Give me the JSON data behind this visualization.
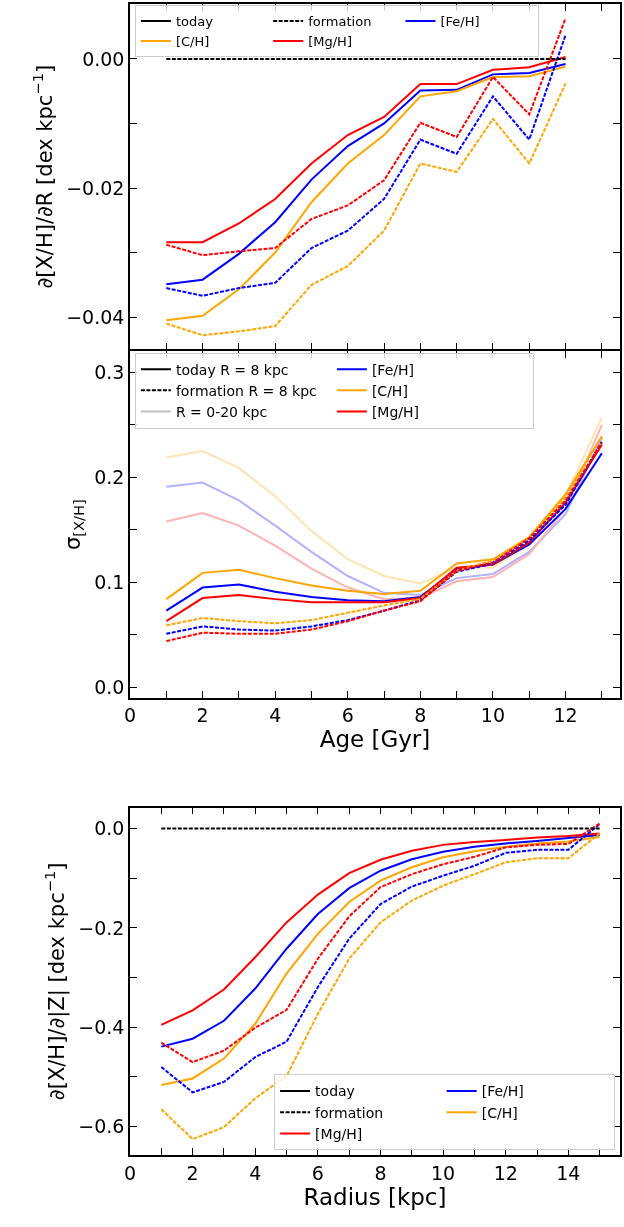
{
  "chart_data": [
    {
      "type": "line",
      "ylabel": "∂[X/H]/∂R [dex kpc$^{−1}$]",
      "legend": "top left",
      "tick_labels": "y",
      "x": [
        1,
        2,
        3,
        4,
        5,
        6,
        7,
        8,
        9,
        10,
        11,
        12
      ],
      "xlim": [
        0,
        13.5
      ],
      "xticks": [
        0,
        {
          "value": 1,
          "label": null
        },
        2,
        {
          "value": 3,
          "label": null
        },
        4,
        {
          "value": 5,
          "label": null
        },
        6,
        {
          "value": 7,
          "label": null
        },
        8,
        {
          "value": 9,
          "label": null
        },
        10,
        {
          "value": 11,
          "label": null
        },
        12,
        {
          "value": 13,
          "label": null
        }
      ],
      "ylim": [
        -0.045,
        0.0085
      ],
      "yticks": [
        {
          "value": -0.04,
          "label": "−0.04"
        },
        {
          "value": -0.03,
          "label": null
        },
        {
          "value": -0.02,
          "label": "−0.02"
        },
        {
          "value": -0.01,
          "label": null
        },
        {
          "value": 0,
          "label": "0.00"
        }
      ],
      "series": [
        {
          "name": "today",
          "color": "#000000",
          "line_style": "solid",
          "values": [
            null,
            null,
            null,
            null,
            null,
            null,
            null,
            null,
            null,
            null,
            null,
            null
          ]
        },
        {
          "name": "formation",
          "color": "#000000",
          "line_style": "dashed",
          "values": [
            null,
            null,
            null,
            null,
            null,
            null,
            null,
            null,
            null,
            null,
            null,
            null
          ]
        },
        {
          "name": "[Fe/H]",
          "color": "#0000ff",
          "line_style": "solid",
          "values": [
            -0.0349,
            -0.0342,
            -0.0302,
            -0.0253,
            -0.0187,
            -0.0135,
            -0.01,
            -0.0049,
            -0.0048,
            -0.0024,
            -0.0022,
            -0.0008
          ]
        },
        {
          "name": "[C/H]",
          "color": "#ffa500",
          "line_style": "solid",
          "values": [
            -0.0405,
            -0.0398,
            -0.0357,
            -0.03,
            -0.0222,
            -0.0162,
            -0.0118,
            -0.0058,
            -0.005,
            -0.0028,
            -0.0027,
            -0.0012
          ]
        },
        {
          "name": "[Mg/H]",
          "color": "#ff0000",
          "line_style": "solid",
          "values": [
            -0.0284,
            -0.0284,
            -0.0255,
            -0.0217,
            -0.0162,
            -0.0118,
            -0.009,
            -0.0039,
            -0.0039,
            -0.0017,
            -0.0013,
            0.0003
          ]
        },
        {
          "color": "#0000ff",
          "line_style": "dashed",
          "values": [
            -0.0355,
            -0.0367,
            -0.0355,
            -0.0347,
            -0.0293,
            -0.0266,
            -0.0217,
            -0.0125,
            -0.0147,
            -0.0058,
            -0.0125,
            0.0037
          ]
        },
        {
          "color": "#ffa500",
          "line_style": "dashed",
          "values": [
            -0.041,
            -0.0428,
            -0.0422,
            -0.0414,
            -0.035,
            -0.0321,
            -0.0266,
            -0.0162,
            -0.0175,
            -0.0093,
            -0.0162,
            -0.0038
          ]
        },
        {
          "color": "#ff0000",
          "line_style": "dashed",
          "values": [
            -0.0288,
            -0.0304,
            -0.0298,
            -0.0293,
            -0.0248,
            -0.0227,
            -0.0188,
            -0.0099,
            -0.0121,
            -0.0028,
            -0.0086,
            0.0063
          ]
        },
        {
          "color": "#000000",
          "line_style": "dashed",
          "values": [
            0,
            0,
            0,
            0,
            0,
            0,
            0,
            0,
            0,
            0,
            0,
            0
          ]
        }
      ]
    },
    {
      "type": "line",
      "xlabel": "Age [Gyr]",
      "ylabel": "σ$_{[X/H]}$",
      "legend": "top left",
      "x": [
        1,
        2,
        3,
        4,
        5,
        6,
        7,
        8,
        9,
        10,
        11,
        12,
        13
      ],
      "xlim": [
        0,
        13.5
      ],
      "xticks": [
        0,
        {
          "value": 1,
          "label": null
        },
        2,
        {
          "value": 3,
          "label": null
        },
        4,
        {
          "value": 5,
          "label": null
        },
        6,
        {
          "value": 7,
          "label": null
        },
        8,
        {
          "value": 9,
          "label": null
        },
        10,
        {
          "value": 11,
          "label": null
        },
        12,
        {
          "value": 13,
          "label": null
        }
      ],
      "ylim": [
        -0.01,
        0.32
      ],
      "yticks": [
        {
          "value": 0,
          "label": "0.0"
        },
        {
          "value": 0.05,
          "label": null
        },
        {
          "value": 0.1,
          "label": "0.1"
        },
        {
          "value": 0.15,
          "label": null
        },
        {
          "value": 0.2,
          "label": "0.2"
        },
        {
          "value": 0.25,
          "label": null
        },
        {
          "value": 0.3,
          "label": "0.3"
        }
      ],
      "series": [
        {
          "color": "#b2b2ff",
          "line_style": "solid",
          "values": [
            0.191,
            0.195,
            0.178,
            0.154,
            0.129,
            0.106,
            0.09,
            0.088,
            0.104,
            0.108,
            0.129,
            0.165,
            0.238
          ]
        },
        {
          "color": "#ffe4b2",
          "line_style": "solid",
          "values": [
            0.219,
            0.225,
            0.209,
            0.182,
            0.149,
            0.122,
            0.106,
            0.099,
            0.114,
            0.114,
            0.136,
            0.182,
            0.257
          ]
        },
        {
          "color": "#ffb2b2",
          "line_style": "solid",
          "values": [
            0.158,
            0.166,
            0.154,
            0.135,
            0.113,
            0.095,
            0.084,
            0.085,
            0.101,
            0.105,
            0.127,
            0.17,
            0.25
          ]
        },
        {
          "name": "today R = 8 kpc",
          "color": "#000000",
          "line_style": "solid",
          "values": [
            null,
            null,
            null,
            null,
            null,
            null,
            null,
            null,
            null,
            null,
            null,
            null,
            null
          ]
        },
        {
          "name": "[Fe/H]",
          "color": "#0000ff",
          "line_style": "solid",
          "values": [
            0.073,
            0.095,
            0.098,
            0.091,
            0.086,
            0.083,
            0.082,
            0.086,
            0.113,
            0.117,
            0.136,
            0.17,
            0.223
          ]
        },
        {
          "name": "formation R = 8 kpc",
          "color": "#000000",
          "line_style": "dashed",
          "values": [
            null,
            null,
            null,
            null,
            null,
            null,
            null,
            null,
            null,
            null,
            null,
            null,
            null
          ]
        },
        {
          "name": "[C/H]",
          "color": "#ffa500",
          "line_style": "solid",
          "values": [
            0.084,
            0.109,
            0.112,
            0.104,
            0.097,
            0.092,
            0.089,
            0.092,
            0.118,
            0.122,
            0.143,
            0.184,
            0.239
          ]
        },
        {
          "name": "R = 0-20 kpc",
          "color": "#c0c0c0",
          "line_style": "solid",
          "values": [
            null,
            null,
            null,
            null,
            null,
            null,
            null,
            null,
            null,
            null,
            null,
            null,
            null
          ]
        },
        {
          "name": "[Mg/H]",
          "color": "#ff0000",
          "line_style": "solid",
          "values": [
            0.063,
            0.085,
            0.088,
            0.084,
            0.081,
            0.081,
            0.081,
            0.085,
            0.114,
            0.117,
            0.138,
            0.176,
            0.231
          ]
        },
        {
          "color": "#0000ff",
          "line_style": "dashed",
          "values": [
            0.051,
            0.058,
            0.055,
            0.054,
            0.058,
            0.064,
            0.073,
            0.083,
            0.11,
            0.118,
            0.14,
            0.174,
            0.234
          ]
        },
        {
          "color": "#ffa500",
          "line_style": "dashed",
          "values": [
            0.059,
            0.066,
            0.063,
            0.061,
            0.064,
            0.071,
            0.078,
            0.084,
            0.111,
            0.121,
            0.143,
            0.181,
            0.239
          ]
        },
        {
          "color": "#ff0000",
          "line_style": "dashed",
          "values": [
            0.044,
            0.052,
            0.051,
            0.051,
            0.055,
            0.063,
            0.073,
            0.082,
            0.111,
            0.119,
            0.142,
            0.178,
            0.233
          ]
        }
      ]
    },
    {
      "type": "line",
      "xlabel": "Radius [kpc]",
      "ylabel": "∂[X/H]/∂|Z| [dex kpc$^{−1}$]",
      "legend": "bottom right",
      "x": [
        1,
        2,
        3,
        4,
        5,
        6,
        7,
        8,
        9,
        10,
        11,
        12,
        13,
        14,
        15
      ],
      "xlim": [
        0,
        15.65
      ],
      "xticks": [
        0,
        {
          "value": 1,
          "label": null
        },
        2,
        {
          "value": 3,
          "label": null
        },
        4,
        {
          "value": 5,
          "label": null
        },
        6,
        {
          "value": 7,
          "label": null
        },
        8,
        {
          "value": 9,
          "label": null
        },
        10,
        {
          "value": 11,
          "label": null
        },
        12,
        {
          "value": 13,
          "label": null
        },
        14,
        {
          "value": 15,
          "label": null
        }
      ],
      "ylim": [
        -0.657,
        0.042
      ],
      "yticks": [
        {
          "value": -0.6,
          "label": "−0.6"
        },
        {
          "value": -0.5,
          "label": null
        },
        {
          "value": -0.4,
          "label": "−0.4"
        },
        {
          "value": -0.3,
          "label": null
        },
        {
          "value": -0.2,
          "label": "−0.2"
        },
        {
          "value": -0.1,
          "label": null
        },
        {
          "value": 0,
          "label": "0.0"
        }
      ],
      "series": [
        {
          "name": "today",
          "color": "#000000",
          "line_style": "solid",
          "values": [
            null,
            null,
            null,
            null,
            null,
            null,
            null,
            null,
            null,
            null,
            null,
            null,
            null,
            null,
            null
          ]
        },
        {
          "name": "[Fe/H]",
          "color": "#0000ff",
          "line_style": "solid",
          "values": [
            -0.439,
            -0.423,
            -0.387,
            -0.322,
            -0.242,
            -0.172,
            -0.12,
            -0.085,
            -0.062,
            -0.047,
            -0.037,
            -0.03,
            -0.025,
            -0.019,
            -0.013
          ]
        },
        {
          "name": "formation",
          "color": "#000000",
          "line_style": "dashed",
          "values": [
            null,
            null,
            null,
            null,
            null,
            null,
            null,
            null,
            null,
            null,
            null,
            null,
            null,
            null,
            null
          ]
        },
        {
          "name": "[C/H]",
          "color": "#ffa500",
          "line_style": "solid",
          "values": [
            -0.516,
            -0.503,
            -0.463,
            -0.393,
            -0.292,
            -0.212,
            -0.148,
            -0.105,
            -0.078,
            -0.058,
            -0.046,
            -0.037,
            -0.03,
            -0.026,
            -0.017
          ]
        },
        {
          "name": "[Mg/H]",
          "color": "#ff0000",
          "line_style": "solid",
          "values": [
            -0.395,
            -0.366,
            -0.324,
            -0.259,
            -0.189,
            -0.133,
            -0.09,
            -0.063,
            -0.045,
            -0.033,
            -0.027,
            -0.023,
            -0.018,
            -0.015,
            -0.01
          ]
        },
        {
          "color": "#0000ff",
          "line_style": "dashed",
          "values": [
            -0.48,
            -0.531,
            -0.51,
            -0.46,
            -0.429,
            -0.319,
            -0.222,
            -0.152,
            -0.117,
            -0.095,
            -0.075,
            -0.049,
            -0.043,
            -0.043,
            0.009
          ]
        },
        {
          "color": "#ffa500",
          "line_style": "dashed",
          "values": [
            -0.565,
            -0.625,
            -0.601,
            -0.543,
            -0.498,
            -0.373,
            -0.262,
            -0.189,
            -0.145,
            -0.115,
            -0.092,
            -0.068,
            -0.06,
            -0.06,
            -0.01
          ]
        },
        {
          "color": "#ff0000",
          "line_style": "dashed",
          "values": [
            -0.431,
            -0.47,
            -0.447,
            -0.401,
            -0.365,
            -0.262,
            -0.177,
            -0.118,
            -0.092,
            -0.072,
            -0.057,
            -0.038,
            -0.033,
            -0.031,
            0.01
          ]
        },
        {
          "color": "#000000",
          "line_style": "dashed",
          "values": [
            0,
            0,
            0,
            0,
            0,
            0,
            0,
            0,
            0,
            0,
            0,
            0,
            0,
            0,
            0
          ]
        }
      ]
    }
  ]
}
